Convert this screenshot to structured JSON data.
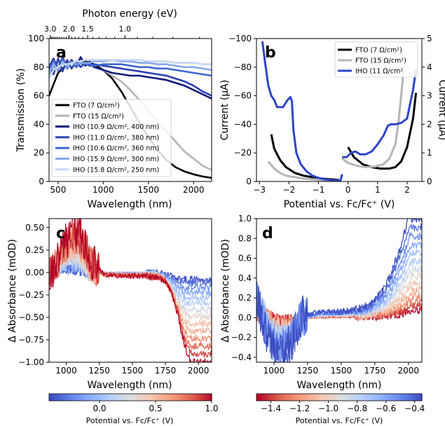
{
  "chart_data": [
    {
      "panel": "a",
      "type": "line",
      "xlabel": "Wavelength (nm)",
      "ylabel": "Transmission (%)",
      "x2label": "Photon energy (eV)",
      "xlim": [
        400,
        2200
      ],
      "ylim": [
        0,
        100
      ],
      "xticks": [
        500,
        1000,
        1500,
        2000
      ],
      "yticks": [
        0,
        20,
        40,
        60,
        80,
        100
      ],
      "x2ticks": [
        3.0,
        2.0,
        1.5,
        1.0
      ],
      "x2ticklabels": [
        "3.0",
        "2.0",
        "1.5",
        "1.0"
      ],
      "legend_position": "lower-left",
      "series": [
        {
          "name": "FTO (7 Ω/cm²)",
          "color": "#000000",
          "x": [
            400,
            450,
            500,
            600,
            700,
            800,
            900,
            1000,
            1100,
            1200,
            1300,
            1400,
            1500,
            1600,
            1700,
            1800,
            1900,
            2000,
            2100,
            2200
          ],
          "y": [
            60,
            68,
            76,
            82,
            84,
            84,
            82,
            78,
            72,
            63,
            52,
            41,
            31,
            22,
            15,
            10,
            7,
            5,
            3.5,
            2.5
          ]
        },
        {
          "name": "FTO (15 Ω/cm²)",
          "color": "#b5b5b5",
          "x": [
            400,
            450,
            500,
            600,
            700,
            800,
            900,
            1000,
            1100,
            1200,
            1300,
            1400,
            1500,
            1600,
            1700,
            1800,
            1900,
            2000,
            2100,
            2200
          ],
          "y": [
            74,
            80,
            82,
            83,
            83,
            82,
            80,
            78,
            74,
            70,
            64,
            57,
            50,
            42,
            35,
            28,
            21,
            16,
            11,
            8
          ]
        },
        {
          "name": "IHO (10.9 Ω/cm²,  400 nm)",
          "color": "#0d1a7a",
          "x": [
            400,
            450,
            500,
            550,
            600,
            650,
            700,
            750,
            800,
            850,
            900,
            1000,
            1100,
            1200,
            1300,
            1400,
            1500,
            1600,
            1700,
            1800,
            1900,
            2000,
            2100,
            2200
          ],
          "y": [
            80,
            86,
            78,
            87,
            79,
            85,
            80,
            87,
            81,
            84,
            80,
            78,
            76,
            75,
            74,
            74,
            73,
            72,
            71,
            69,
            67,
            64,
            61,
            58
          ]
        },
        {
          "name": "IHO (11.0 Ω/cm²,  380 nm)",
          "color": "#2b3fb0",
          "x": [
            400,
            450,
            500,
            550,
            600,
            650,
            700,
            750,
            800,
            850,
            900,
            1000,
            1100,
            1200,
            1300,
            1400,
            1500,
            1600,
            1700,
            1800,
            1900,
            2000,
            2100,
            2200
          ],
          "y": [
            82,
            75,
            86,
            77,
            85,
            79,
            84,
            80,
            83,
            81,
            82,
            81,
            80,
            79,
            78,
            77,
            76,
            75,
            74,
            72,
            70,
            67,
            63,
            60
          ]
        },
        {
          "name": "IHO (10.6 Ω/cm²,  360 nm)",
          "color": "#3f67d0",
          "x": [
            400,
            450,
            500,
            550,
            600,
            650,
            700,
            750,
            800,
            850,
            900,
            1000,
            1100,
            1200,
            1300,
            1400,
            1500,
            1600,
            1700,
            1800,
            1900,
            2000,
            2100,
            2200
          ],
          "y": [
            78,
            85,
            77,
            86,
            79,
            84,
            80,
            83,
            82,
            82,
            81,
            82,
            82,
            82,
            81,
            80,
            80,
            79,
            79,
            78,
            77,
            76,
            75,
            74
          ]
        },
        {
          "name": "IHO (15.9 Ω/cm², 300 nm)",
          "color": "#86a8e8",
          "x": [
            400,
            450,
            500,
            550,
            600,
            650,
            700,
            750,
            800,
            850,
            900,
            1000,
            1100,
            1200,
            1300,
            1400,
            1500,
            1600,
            1700,
            1800,
            1900,
            2000,
            2100,
            2200
          ],
          "y": [
            76,
            82,
            78,
            84,
            80,
            83,
            82,
            83,
            83,
            83,
            84,
            84,
            85,
            84,
            84,
            83,
            83,
            82,
            82,
            81,
            80,
            80,
            79,
            78
          ]
        },
        {
          "name": "IHO (15.8 Ω/cm², 250 nm)",
          "color": "#c5d6f3",
          "x": [
            400,
            450,
            500,
            550,
            600,
            650,
            700,
            750,
            800,
            850,
            900,
            1000,
            1100,
            1200,
            1300,
            1400,
            1500,
            1600,
            1700,
            1800,
            1900,
            2000,
            2100,
            2200
          ],
          "y": [
            72,
            78,
            80,
            82,
            82,
            83,
            84,
            84,
            85,
            85,
            85,
            85,
            85,
            85,
            85,
            85,
            84,
            84,
            84,
            83,
            83,
            83,
            82,
            82
          ]
        }
      ]
    },
    {
      "panel": "b",
      "type": "line",
      "xlabel": "Potential vs. Fc/Fc$^+$ (V)",
      "xlabel_display": "Potential vs. Fc/Fc⁺ (V)",
      "ylabel": "Current (μA)",
      "y2label": "Current (μA)",
      "xlim": [
        -3.1,
        2.5
      ],
      "ylim": [
        0,
        -100
      ],
      "y2lim": [
        0,
        5
      ],
      "xticks": [
        -3,
        -2,
        -1,
        0,
        1,
        2
      ],
      "yticks": [
        0,
        -20,
        -40,
        -60,
        -80,
        -100
      ],
      "y2ticks": [
        0,
        1,
        2,
        3,
        4,
        5
      ],
      "legend_position": "top-right",
      "series": [
        {
          "name": "FTO (7 Ω/cm²)",
          "color": "#000000",
          "axis": "left",
          "x": [
            -2.6,
            -2.5,
            -2.3,
            -2.1,
            -1.8,
            -1.5,
            -1.2,
            -0.9,
            -0.6,
            -0.3
          ],
          "y": [
            -33,
            -23,
            -15,
            -10,
            -6,
            -4,
            -3,
            -2,
            -1.5,
            -1
          ]
        },
        {
          "name": "FTO (15 Ω/cm²)",
          "color": "#b5b5b5",
          "axis": "left",
          "x": [
            -2.7,
            -2.5,
            -2.3,
            -2.1,
            -1.8,
            -1.5,
            -1.2,
            -0.9,
            -0.6,
            -0.3
          ],
          "y": [
            -14,
            -9,
            -6,
            -4,
            -3,
            -2,
            -1.5,
            -1,
            -0.8,
            -0.5
          ]
        },
        {
          "name": "IHO (11 Ω/cm²",
          "color": "#2e44c9",
          "axis": "left",
          "x": [
            -2.9,
            -2.8,
            -2.7,
            -2.6,
            -2.5,
            -2.4,
            -2.2,
            -2.05,
            -1.95,
            -1.9,
            -1.85,
            -1.75,
            -1.6,
            -1.4,
            -1.2,
            -1.0,
            -0.8,
            -0.6,
            -0.4,
            -0.25,
            -0.2
          ],
          "y": [
            -98,
            -82,
            -67,
            -60,
            -57,
            -52,
            -52,
            -57,
            -59,
            -56,
            -36,
            -20,
            -12,
            -7,
            -4,
            -2.5,
            -1.5,
            -1,
            -0.5,
            -1,
            -5
          ]
        },
        {
          "name": "FTO (7 Ω/cm²)",
          "color": "#000000",
          "axis": "right",
          "x": [
            0.0,
            0.2,
            0.5,
            0.8,
            1.1,
            1.4,
            1.6,
            1.8,
            2.0,
            2.2,
            2.3
          ],
          "y": [
            1.2,
            0.85,
            0.6,
            0.5,
            0.45,
            0.45,
            0.5,
            0.7,
            1.2,
            2.2,
            3.1
          ]
        },
        {
          "name": "FTO (15 Ω/cm²)",
          "color": "#b5b5b5",
          "axis": "right",
          "x": [
            -0.2,
            0.0,
            0.3,
            0.6,
            0.9,
            1.2,
            1.4,
            1.6,
            1.7,
            1.8,
            1.9
          ],
          "y": [
            0.8,
            0.65,
            0.55,
            0.5,
            0.52,
            0.6,
            0.8,
            1.3,
            2.0,
            3.0,
            4.1
          ]
        },
        {
          "name": "IHO (11 Ω/cm²",
          "color": "#2e44c9",
          "axis": "right",
          "x": [
            -0.2,
            -0.05,
            0.1,
            0.25,
            0.4,
            0.6,
            0.8,
            1.0,
            1.2,
            1.35,
            1.45,
            1.6,
            1.8,
            2.0,
            2.1,
            2.2,
            2.3
          ],
          "y": [
            0.85,
            0.85,
            1.0,
            1.05,
            0.95,
            0.95,
            1.05,
            1.3,
            1.6,
            1.95,
            2.0,
            2.0,
            2.05,
            2.2,
            2.7,
            3.2,
            3.9
          ]
        }
      ]
    },
    {
      "panel": "c",
      "type": "line",
      "xlabel": "Wavelength (nm)",
      "ylabel": "Δ Absorbance (mOD)",
      "xlim": [
        870,
        2100
      ],
      "ylim": [
        -1.0,
        0.6
      ],
      "xticks": [
        1000,
        1250,
        1500,
        1750,
        2000
      ],
      "yticks": [
        0.5,
        0.25,
        0.0,
        -0.25,
        -0.5,
        -0.75,
        -1.0
      ],
      "yticklabels": [
        "0.50",
        "0.25",
        "0.00",
        "−0.25",
        "−0.50",
        "−0.75",
        "−1.00"
      ],
      "colorbar": {
        "label": "Potential vs. Fc/Fc$^+$ (V)",
        "label_display": "Potential vs. Fc/Fc⁺ (V)",
        "ticks": [
          0.0,
          0.5,
          1.0
        ],
        "ticklabels": [
          "0.0",
          "0.5",
          "1.0"
        ],
        "range": [
          -0.45,
          1.0
        ],
        "cmap": "coolwarm"
      },
      "series_summary": {
        "potentials": [
          -0.45,
          1.0
        ],
        "extreme_curve_x": [
          870,
          950,
          1000,
          1050,
          1100,
          1150,
          1200,
          1300,
          1400,
          1500,
          1600,
          1700,
          1750,
          1800,
          1850,
          1900,
          1950,
          2000
        ],
        "extreme_curve_y": [
          -0.02,
          0.15,
          0.35,
          0.48,
          0.46,
          0.32,
          0.1,
          -0.03,
          -0.04,
          -0.04,
          -0.04,
          -0.06,
          -0.1,
          -0.25,
          -0.5,
          -0.85,
          -1.0,
          -1.0
        ]
      }
    },
    {
      "panel": "d",
      "type": "line",
      "xlabel": "Wavelength (nm)",
      "ylabel": "Δ Absorbance (mOD)",
      "xlim": [
        870,
        2100
      ],
      "ylim": [
        -0.45,
        1.0
      ],
      "xticks": [
        1000,
        1250,
        1500,
        1750,
        2000
      ],
      "yticks": [
        1.0,
        0.8,
        0.6,
        0.4,
        0.2,
        0.0,
        -0.2,
        -0.4
      ],
      "yticklabels": [
        "1.0",
        "0.8",
        "0.6",
        "0.4",
        "0.2",
        "0.0",
        "−0.2",
        "−0.4"
      ],
      "colorbar": {
        "label": "Potential vs. Fc/Fc$^+$ (V)",
        "label_display": "Potential vs. Fc/Fc⁺ (V)",
        "ticks": [
          -1.4,
          -1.2,
          -1.0,
          -0.8,
          -0.6,
          -0.4
        ],
        "ticklabels": [
          "−1.4",
          "−1.2",
          "−1.0",
          "−0.8",
          "−0.6",
          "−0.4"
        ],
        "range": [
          -1.5,
          -0.35
        ],
        "cmap": "coolwarm_r"
      },
      "series_summary": {
        "potentials": [
          -1.5,
          -0.35
        ],
        "extreme_curve_x": [
          870,
          950,
          1000,
          1050,
          1100,
          1150,
          1200,
          1300,
          1400,
          1500,
          1600,
          1700,
          1800,
          1850,
          1900,
          1950,
          2000,
          2050,
          2100
        ],
        "extreme_curve_y": [
          0.25,
          -0.25,
          -0.35,
          -0.38,
          -0.33,
          -0.15,
          0.0,
          0.05,
          0.06,
          0.06,
          0.08,
          0.12,
          0.25,
          0.38,
          0.55,
          0.75,
          1.0,
          1.0,
          1.0
        ]
      }
    }
  ]
}
